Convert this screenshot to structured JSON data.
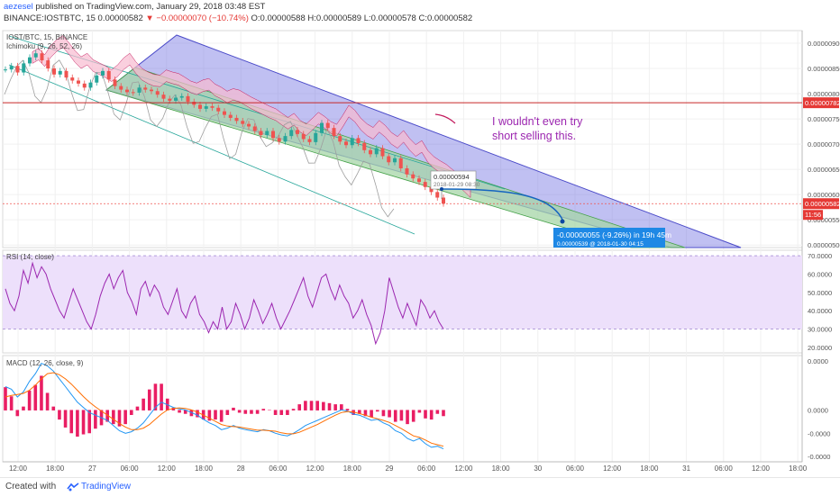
{
  "header": {
    "author": "aezesel",
    "published": "published on TradingView.com, January 29, 2018 03:48 EST",
    "symbol": "BINANCE:IOSTBTC, 15",
    "price": "0.00000582",
    "change": "▼ −0.00000070 (−10.74%)",
    "ohlc": "O:0.00000588 H:0.00000589 L:0.00000578 C:0.00000582"
  },
  "colors": {
    "price_up": "#26a69a",
    "price_down": "#ef5350",
    "channel_outer": "#4a4ac8",
    "channel_inner_fill": "#a5d6a7",
    "rsi": "#9c27b0",
    "macd": "#2196f3",
    "macd_signal": "#ff6d00",
    "hist": "#e91e63",
    "label_red": "#e53935",
    "label_blue": "#1e88e5",
    "annotation": "#9c27b0"
  },
  "chart_data": [
    {
      "type": "line",
      "title": "IOST/BTC, 15, BINANCE",
      "indicator": "Ichimoku (9, 26, 52, 26)",
      "y_tick_labels": [
        "0.00000900",
        "0.00000850",
        "0.00000800",
        "0.00000750",
        "0.00000700",
        "0.00000650",
        "0.00000600",
        "0.00000550",
        "0.00000500"
      ],
      "ylim": [
        4.95e-06,
        9.25e-06
      ],
      "x_tick_labels": [
        "12:00",
        "18:00",
        "27",
        "06:00",
        "12:00",
        "18:00",
        "28",
        "06:00",
        "12:00",
        "18:00",
        "29",
        "06:00",
        "12:00",
        "18:00",
        "30",
        "06:00",
        "12:00",
        "18:00",
        "31",
        "06:00",
        "12:00",
        "18:00"
      ],
      "close": [
        8.48e-06,
        8.55e-06,
        8.42e-06,
        8.6e-06,
        8.72e-06,
        8.8e-06,
        8.66e-06,
        8.5e-06,
        8.38e-06,
        8.45e-06,
        8.32e-06,
        8.26e-06,
        8.2e-06,
        8.12e-06,
        8.22e-06,
        8.36e-06,
        8.45e-06,
        8.28e-06,
        8.15e-06,
        8.08e-06,
        8.03e-06,
        8.02e-06,
        8.12e-06,
        8.08e-06,
        8.05e-06,
        7.98e-06,
        7.9e-06,
        7.86e-06,
        7.92e-06,
        7.95e-06,
        7.84e-06,
        7.78e-06,
        7.7e-06,
        7.75e-06,
        7.72e-06,
        7.65e-06,
        7.58e-06,
        7.52e-06,
        7.46e-06,
        7.4e-06,
        7.35e-06,
        7.26e-06,
        7.18e-06,
        7.26e-06,
        7.12e-06,
        7.05e-06,
        7.16e-06,
        7.28e-06,
        7.2e-06,
        7.1e-06,
        7.04e-06,
        7.22e-06,
        7.42e-06,
        7.32e-06,
        7.16e-06,
        7.05e-06,
        6.98e-06,
        7.12e-06,
        7.02e-06,
        6.88e-06,
        6.8e-06,
        6.92e-06,
        6.76e-06,
        6.64e-06,
        6.72e-06,
        6.52e-06,
        6.4e-06,
        6.32e-06,
        6.25e-06,
        6.15e-06,
        6.05e-06,
        5.94e-06,
        5.82e-06
      ],
      "last_price_label": "0.00000582",
      "countdown_label": "11:56",
      "horizontal_line_label": "0.00000782",
      "marker_label": {
        "price": "0.00000594",
        "time": "2018-01-29 08:30"
      },
      "projection_label": {
        "change": "-0.00000055 (-9.26%) in 19h 45m",
        "target": "0.00000539 @ 2018-01-30 04:15"
      },
      "annotation": [
        "I wouldn't even try",
        "short selling this."
      ]
    },
    {
      "type": "line",
      "title": "RSI (14, close)",
      "y_tick_labels": [
        "70.0000",
        "60.0000",
        "50.0000",
        "40.0000",
        "30.0000",
        "20.0000"
      ],
      "ylim": [
        17,
        73
      ],
      "band": [
        30,
        70
      ],
      "values": [
        52,
        44,
        40,
        48,
        62,
        55,
        66,
        58,
        64,
        60,
        52,
        46,
        40,
        36,
        44,
        52,
        46,
        40,
        34,
        30,
        38,
        48,
        55,
        60,
        52,
        58,
        62,
        50,
        45,
        38,
        52,
        56,
        48,
        54,
        50,
        42,
        38,
        45,
        52,
        40,
        36,
        44,
        48,
        38,
        34,
        28,
        34,
        30,
        42,
        30,
        34,
        44,
        38,
        30,
        36,
        46,
        40,
        33,
        38,
        44,
        36,
        30,
        35,
        40,
        46,
        52,
        58,
        48,
        42,
        50,
        58,
        60,
        52,
        46,
        54,
        48,
        44,
        36,
        40,
        46,
        38,
        32,
        22,
        28,
        40,
        58,
        50,
        42,
        36,
        44,
        38,
        32,
        46,
        42,
        36,
        40,
        34,
        30
      ]
    },
    {
      "type": "line",
      "title": "MACD (12, 26, close, 9)",
      "y_tick_labels": [
        "0.0000",
        "0.0000",
        "-0.0000",
        "-0.0000"
      ],
      "ylim": [
        -1.0,
        1.05
      ],
      "macd": [
        0.45,
        0.4,
        0.25,
        0.35,
        0.55,
        0.7,
        0.9,
        0.85,
        0.75,
        0.6,
        0.45,
        0.3,
        0.15,
        0.05,
        -0.05,
        -0.1,
        -0.15,
        -0.2,
        -0.3,
        -0.4,
        -0.45,
        -0.42,
        -0.35,
        -0.25,
        -0.1,
        0.05,
        0.15,
        0.1,
        0.05,
        0.02,
        0.0,
        -0.05,
        -0.1,
        -0.18,
        -0.25,
        -0.3,
        -0.38,
        -0.35,
        -0.3,
        -0.35,
        -0.38,
        -0.4,
        -0.42,
        -0.38,
        -0.4,
        -0.45,
        -0.48,
        -0.5,
        -0.45,
        -0.38,
        -0.3,
        -0.25,
        -0.2,
        -0.15,
        -0.1,
        -0.05,
        0.0,
        -0.02,
        -0.08,
        -0.1,
        -0.15,
        -0.2,
        -0.18,
        -0.25,
        -0.3,
        -0.4,
        -0.45,
        -0.55,
        -0.6,
        -0.55,
        -0.65,
        -0.72,
        -0.7,
        -0.75
      ],
      "signal": [
        0.25,
        0.28,
        0.3,
        0.32,
        0.38,
        0.48,
        0.6,
        0.7,
        0.72,
        0.68,
        0.6,
        0.5,
        0.38,
        0.26,
        0.15,
        0.06,
        -0.02,
        -0.1,
        -0.18,
        -0.26,
        -0.33,
        -0.38,
        -0.38,
        -0.35,
        -0.28,
        -0.18,
        -0.08,
        0.0,
        0.03,
        0.04,
        0.03,
        0.0,
        -0.04,
        -0.1,
        -0.16,
        -0.22,
        -0.28,
        -0.31,
        -0.32,
        -0.33,
        -0.35,
        -0.37,
        -0.39,
        -0.39,
        -0.4,
        -0.41,
        -0.44,
        -0.46,
        -0.46,
        -0.43,
        -0.38,
        -0.33,
        -0.28,
        -0.22,
        -0.16,
        -0.1,
        -0.05,
        -0.03,
        -0.04,
        -0.07,
        -0.1,
        -0.14,
        -0.17,
        -0.2,
        -0.24,
        -0.3,
        -0.36,
        -0.43,
        -0.5,
        -0.53,
        -0.58,
        -0.64,
        -0.67,
        -0.7
      ]
    }
  ],
  "footer": {
    "created_with": "Created with",
    "brand": "TradingView"
  }
}
